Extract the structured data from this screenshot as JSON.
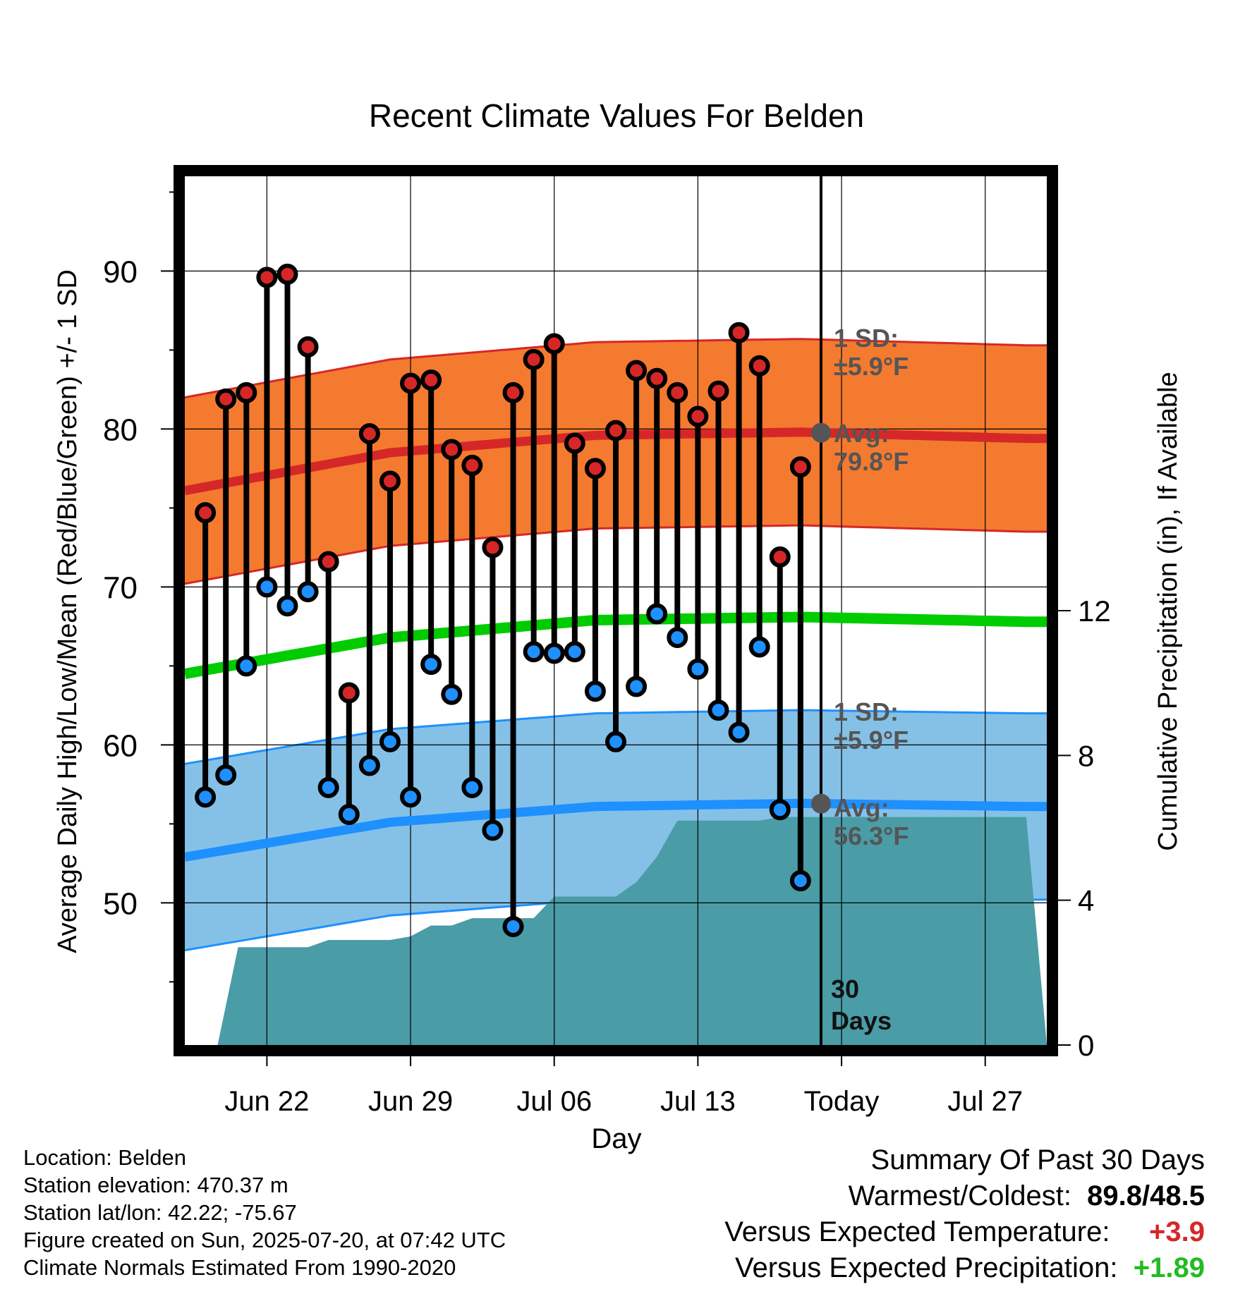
{
  "chart_data": {
    "type": "line",
    "title": "Recent Climate Values For Belden",
    "xlabel": "Day",
    "ylabel_left": "Average Daily High/Low/Mean (Red/Blue/Green) +/- 1 SD",
    "ylabel_right": "Cumulative Precipitation (in), If Available",
    "x_ticks": [
      "Jun 22",
      "Jun 29",
      "Jul 06",
      "Jul 13",
      "Today",
      "Jul 27"
    ],
    "y_left_ticks": [
      50,
      60,
      70,
      80,
      90
    ],
    "y_left_range": [
      41,
      96
    ],
    "y_right_ticks": [
      0,
      4,
      8,
      12
    ],
    "y_right_range": [
      0,
      24
    ],
    "x_range": [
      "2025-06-18",
      "2025-07-30"
    ],
    "days": [
      "2025-06-19",
      "2025-06-20",
      "2025-06-21",
      "2025-06-22",
      "2025-06-23",
      "2025-06-24",
      "2025-06-25",
      "2025-06-26",
      "2025-06-27",
      "2025-06-28",
      "2025-06-29",
      "2025-06-30",
      "2025-07-01",
      "2025-07-02",
      "2025-07-03",
      "2025-07-04",
      "2025-07-05",
      "2025-07-06",
      "2025-07-07",
      "2025-07-08",
      "2025-07-09",
      "2025-07-10",
      "2025-07-11",
      "2025-07-12",
      "2025-07-13",
      "2025-07-14",
      "2025-07-15",
      "2025-07-16",
      "2025-07-17",
      "2025-07-18",
      "2025-07-19"
    ],
    "series": [
      {
        "name": "High",
        "color": "#d62728",
        "values": [
          74.7,
          81.9,
          82.3,
          89.6,
          89.8,
          85.2,
          71.6,
          63.3,
          79.7,
          76.7,
          82.9,
          83.1,
          78.7,
          77.7,
          72.5,
          82.3,
          84.4,
          85.4,
          79.1,
          77.5,
          79.9,
          83.7,
          83.2,
          82.3,
          80.8,
          82.4,
          86.1,
          84.0,
          71.9,
          77.6,
          null
        ]
      },
      {
        "name": "Low",
        "color": "#1e90ff",
        "values": [
          56.7,
          58.1,
          65.0,
          70.0,
          68.8,
          69.7,
          57.3,
          55.6,
          58.7,
          60.2,
          56.7,
          65.1,
          63.2,
          57.3,
          54.6,
          48.5,
          65.9,
          65.8,
          65.9,
          63.4,
          60.2,
          63.7,
          68.3,
          66.8,
          64.8,
          62.2,
          60.8,
          66.2,
          55.9,
          51.4,
          null
        ]
      }
    ],
    "normals": {
      "high_avg": [
        [
          0,
          76.1
        ],
        [
          10,
          78.5
        ],
        [
          20,
          79.6
        ],
        [
          30,
          79.8
        ],
        [
          41,
          79.4
        ]
      ],
      "high_sd": 5.9,
      "low_avg": [
        [
          0,
          52.9
        ],
        [
          10,
          55.1
        ],
        [
          20,
          56.1
        ],
        [
          30,
          56.3
        ],
        [
          41,
          56.1
        ]
      ],
      "low_sd": 5.9,
      "mean_avg": [
        [
          0,
          64.5
        ],
        [
          10,
          66.8
        ],
        [
          20,
          67.9
        ],
        [
          30,
          68.1
        ],
        [
          41,
          67.8
        ]
      ]
    },
    "precipitation": [
      [
        0,
        0
      ],
      [
        1.6,
        0
      ],
      [
        2.6,
        2.7
      ],
      [
        6,
        2.7
      ],
      [
        7,
        2.9
      ],
      [
        10,
        2.9
      ],
      [
        11,
        3.0
      ],
      [
        12,
        3.3
      ],
      [
        13,
        3.3
      ],
      [
        14,
        3.5
      ],
      [
        17,
        3.5
      ],
      [
        18,
        4.1
      ],
      [
        21,
        4.1
      ],
      [
        22,
        4.5
      ],
      [
        23,
        5.2
      ],
      [
        24,
        6.2
      ],
      [
        28,
        6.2
      ],
      [
        29,
        6.3
      ],
      [
        41,
        6.3
      ]
    ],
    "today_index": 31,
    "annotations": {
      "high_sd_label": "1 SD:",
      "high_sd_value": "±5.9°F",
      "high_avg_label": "Avg:",
      "high_avg_value": "79.8°F",
      "low_sd_label": "1 SD:",
      "low_sd_value": "±5.9°F",
      "low_avg_label": "Avg:",
      "low_avg_value": "56.3°F",
      "days_count": "30",
      "days_word": "Days"
    },
    "colors": {
      "high_band": "#f47a2f",
      "high_line": "#d62728",
      "low_band": "#85c1e6",
      "low_line": "#1e90ff",
      "mean_line": "#00cc00",
      "precip_fill": "#4a9ca6",
      "annotation_text": "#555555"
    }
  },
  "footer": {
    "location": "Location: Belden",
    "elevation": "Station elevation: 470.37 m",
    "latlon": "Station lat/lon: 42.22; -75.67",
    "created": "Figure created on Sun, 2025-07-20, at 07:42 UTC",
    "normals": "Climate Normals Estimated From 1990-2020"
  },
  "summary": {
    "heading": "Summary Of Past 30 Days",
    "warmest_label": "Warmest/Coldest:",
    "warmest_value": "89.8/48.5",
    "temp_label": "Versus Expected Temperature:",
    "temp_value": "+3.9",
    "precip_label": "Versus Expected Precipitation:",
    "precip_value": "+1.89"
  }
}
